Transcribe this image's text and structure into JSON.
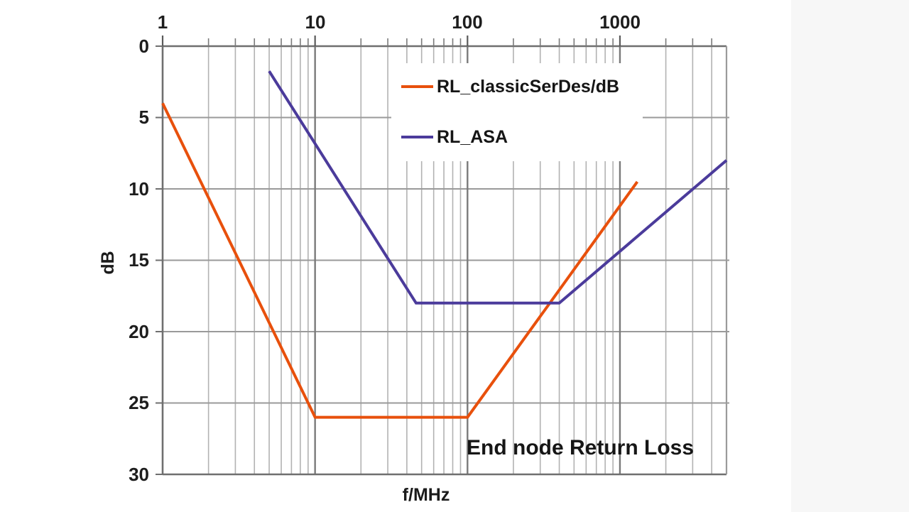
{
  "chart_data": {
    "type": "line",
    "title": "End node Return Loss",
    "xlabel": "f/MHz",
    "ylabel": "dB",
    "x_scale": "log",
    "xlim": [
      1,
      5000
    ],
    "ylim": [
      0,
      30
    ],
    "y_axis_inverted": true,
    "x_major_ticks": [
      1,
      10,
      100,
      1000
    ],
    "y_ticks": [
      0,
      5,
      10,
      15,
      20,
      25,
      30
    ],
    "grid": "log minor + major gridlines, horizontal lines every 5 dB",
    "legend_position": "inside top center, white box over grid",
    "annotation": "End node Return Loss",
    "series": [
      {
        "name": "RL_classicSerDes/dB",
        "color": "#e8500c",
        "points": [
          [
            1,
            4
          ],
          [
            10,
            26
          ],
          [
            100,
            26
          ],
          [
            1300,
            9.5
          ]
        ]
      },
      {
        "name": "RL_ASA",
        "color": "#4b3b9b",
        "points": [
          [
            5,
            1.75
          ],
          [
            46,
            18
          ],
          [
            400,
            18
          ],
          [
            5000,
            8
          ]
        ]
      }
    ]
  }
}
